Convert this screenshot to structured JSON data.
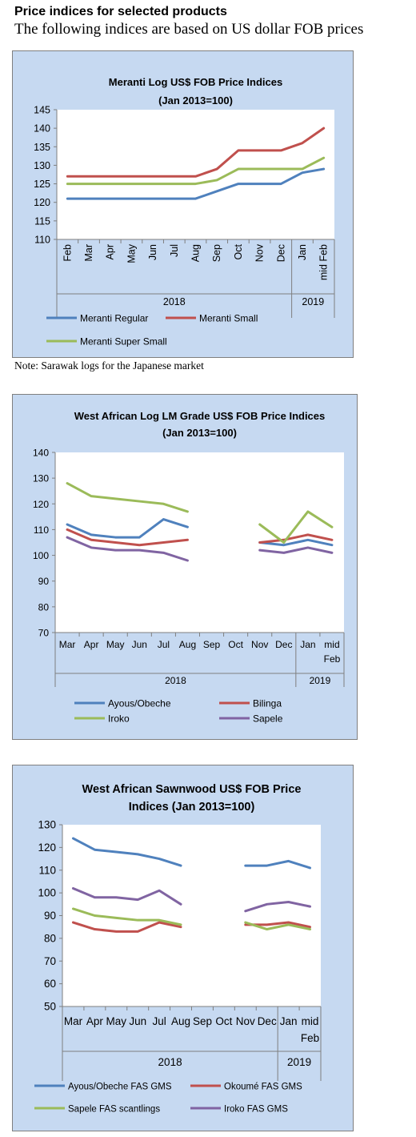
{
  "page": {
    "heading": "Price indices for selected products",
    "subheading": "The following indices are based on US dollar FOB prices",
    "note": "Note: Sarawak logs for the Japanese market"
  },
  "chart_data": [
    {
      "type": "line",
      "title": [
        "Meranti Log US$ FOB Price Indices",
        "(Jan 2013=100)"
      ],
      "categories": [
        "Feb",
        "Mar",
        "Apr",
        "May",
        "Jun",
        "Jul",
        "Aug",
        "Sep",
        "Oct",
        "Nov",
        "Dec",
        "Jan",
        "mid Feb"
      ],
      "year_groups": [
        {
          "label": "2018",
          "span": [
            0,
            10
          ]
        },
        {
          "label": "2019",
          "span": [
            11,
            12
          ]
        }
      ],
      "ylim": [
        110,
        145
      ],
      "yticks": [
        110,
        115,
        120,
        125,
        130,
        135,
        140,
        145
      ],
      "xlabel": "",
      "ylabel": "",
      "series": [
        {
          "name": "Meranti Regular",
          "color": "#4f81bd",
          "values": [
            121,
            121,
            121,
            121,
            121,
            121,
            121,
            123,
            125,
            125,
            125,
            128,
            129
          ]
        },
        {
          "name": "Meranti Small",
          "color": "#c0504d",
          "values": [
            127,
            127,
            127,
            127,
            127,
            127,
            127,
            129,
            134,
            134,
            134,
            136,
            140
          ]
        },
        {
          "name": "Meranti Super Small",
          "color": "#9bbb59",
          "values": [
            125,
            125,
            125,
            125,
            125,
            125,
            125,
            126,
            129,
            129,
            129,
            129,
            132
          ]
        }
      ],
      "grid": false,
      "legend": "bottom"
    },
    {
      "type": "line",
      "title": [
        "West African Log LM Grade US$ FOB Price Indices",
        "(Jan 2013=100)"
      ],
      "categories": [
        "Mar",
        "Apr",
        "May",
        "Jun",
        "Jul",
        "Aug",
        "Sep",
        "Oct",
        "Nov",
        "Dec",
        "Jan",
        "mid Feb"
      ],
      "year_groups": [
        {
          "label": "2018",
          "span": [
            0,
            9
          ]
        },
        {
          "label": "2019",
          "span": [
            10,
            11
          ]
        }
      ],
      "ylim": [
        70,
        140
      ],
      "yticks": [
        70,
        80,
        90,
        100,
        110,
        120,
        130,
        140
      ],
      "xlabel": "",
      "ylabel": "",
      "series": [
        {
          "name": "Ayous/Obeche",
          "color": "#4f81bd",
          "values": [
            112,
            108,
            107,
            107,
            114,
            111,
            null,
            null,
            105,
            104,
            106,
            104
          ]
        },
        {
          "name": "Bilinga",
          "color": "#c0504d",
          "values": [
            110,
            106,
            105,
            104,
            105,
            106,
            null,
            null,
            105,
            106,
            108,
            106
          ]
        },
        {
          "name": "Iroko",
          "color": "#9bbb59",
          "values": [
            128,
            123,
            122,
            121,
            120,
            117,
            null,
            null,
            112,
            105,
            117,
            111
          ]
        },
        {
          "name": "Sapele",
          "color": "#8064a2",
          "values": [
            107,
            103,
            102,
            102,
            101,
            98,
            null,
            null,
            102,
            101,
            103,
            101
          ]
        }
      ],
      "grid": false,
      "legend": "bottom"
    },
    {
      "type": "line",
      "title": [
        "West African Sawnwood US$ FOB Price",
        "Indices (Jan 2013=100)"
      ],
      "categories": [
        "Mar",
        "Apr",
        "May",
        "Jun",
        "Jul",
        "Aug",
        "Sep",
        "Oct",
        "Nov",
        "Dec",
        "Jan",
        "mid Feb"
      ],
      "year_groups": [
        {
          "label": "2018",
          "span": [
            0,
            9
          ]
        },
        {
          "label": "2019",
          "span": [
            10,
            11
          ]
        }
      ],
      "ylim": [
        50,
        130
      ],
      "yticks": [
        50,
        60,
        70,
        80,
        90,
        100,
        110,
        120,
        130
      ],
      "xlabel": "",
      "ylabel": "",
      "series": [
        {
          "name": "Ayous/Obeche FAS GMS",
          "color": "#4f81bd",
          "values": [
            124,
            119,
            118,
            117,
            115,
            112,
            null,
            null,
            112,
            112,
            114,
            111
          ]
        },
        {
          "name": "Okoumé FAS GMS",
          "color": "#c0504d",
          "values": [
            87,
            84,
            83,
            83,
            87,
            85,
            null,
            null,
            86,
            86,
            87,
            85
          ]
        },
        {
          "name": "Sapele FAS scantlings",
          "color": "#9bbb59",
          "values": [
            93,
            90,
            89,
            88,
            88,
            86,
            null,
            null,
            87,
            84,
            86,
            84
          ]
        },
        {
          "name": "Iroko FAS GMS",
          "color": "#8064a2",
          "values": [
            102,
            98,
            98,
            97,
            101,
            95,
            null,
            null,
            92,
            95,
            96,
            94
          ]
        }
      ],
      "grid": false,
      "legend": "bottom"
    }
  ]
}
